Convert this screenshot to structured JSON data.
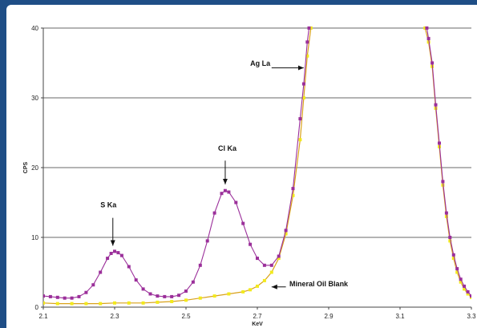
{
  "chart_data": {
    "type": "scatter",
    "title": "",
    "xlabel": "KeV",
    "ylabel": "CPS",
    "xlim": [
      2.1,
      3.3
    ],
    "ylim": [
      0,
      40
    ],
    "xticks": [
      "2.1",
      "2.3",
      "2.5",
      "2.7",
      "2.9",
      "3.1",
      "3.3"
    ],
    "yticks": [
      "0",
      "10",
      "20",
      "30",
      "40"
    ],
    "grid": "horizontal",
    "legend": "none",
    "colors": {
      "sample": "#9b2f9a",
      "blank": "#f2ea1c",
      "blank_line": "#d9a21a"
    },
    "series": [
      {
        "key": "sample",
        "name": "",
        "points": [
          [
            2.1,
            1.6
          ],
          [
            2.12,
            1.5
          ],
          [
            2.14,
            1.4
          ],
          [
            2.16,
            1.3
          ],
          [
            2.18,
            1.3
          ],
          [
            2.2,
            1.5
          ],
          [
            2.22,
            2.1
          ],
          [
            2.24,
            3.2
          ],
          [
            2.26,
            5.0
          ],
          [
            2.28,
            7.0
          ],
          [
            2.29,
            7.7
          ],
          [
            2.3,
            8.0
          ],
          [
            2.31,
            7.8
          ],
          [
            2.32,
            7.4
          ],
          [
            2.34,
            5.8
          ],
          [
            2.36,
            3.9
          ],
          [
            2.38,
            2.6
          ],
          [
            2.4,
            1.9
          ],
          [
            2.42,
            1.6
          ],
          [
            2.44,
            1.5
          ],
          [
            2.46,
            1.5
          ],
          [
            2.48,
            1.7
          ],
          [
            2.5,
            2.3
          ],
          [
            2.52,
            3.6
          ],
          [
            2.54,
            6.0
          ],
          [
            2.56,
            9.5
          ],
          [
            2.58,
            13.5
          ],
          [
            2.6,
            16.3
          ],
          [
            2.61,
            16.7
          ],
          [
            2.62,
            16.5
          ],
          [
            2.64,
            15.0
          ],
          [
            2.66,
            12.0
          ],
          [
            2.68,
            9.0
          ],
          [
            2.7,
            7.0
          ],
          [
            2.72,
            6.0
          ],
          [
            2.74,
            6.0
          ],
          [
            2.76,
            7.3
          ],
          [
            2.78,
            11.0
          ],
          [
            2.8,
            17.0
          ],
          [
            2.82,
            27.0
          ],
          [
            2.83,
            32.0
          ],
          [
            2.84,
            38.0
          ],
          [
            2.845,
            40.0
          ],
          [
            3.175,
            40.0
          ],
          [
            3.18,
            38.5
          ],
          [
            3.19,
            35.0
          ],
          [
            3.2,
            29.0
          ],
          [
            3.21,
            23.5
          ],
          [
            3.22,
            18.0
          ],
          [
            3.23,
            13.5
          ],
          [
            3.24,
            10.0
          ],
          [
            3.25,
            7.5
          ],
          [
            3.26,
            5.5
          ],
          [
            3.27,
            4.0
          ],
          [
            3.28,
            3.0
          ],
          [
            3.29,
            2.2
          ],
          [
            3.3,
            1.6
          ]
        ]
      },
      {
        "key": "blank",
        "name": "",
        "points": [
          [
            2.1,
            0.6
          ],
          [
            2.14,
            0.5
          ],
          [
            2.18,
            0.5
          ],
          [
            2.22,
            0.5
          ],
          [
            2.26,
            0.5
          ],
          [
            2.3,
            0.6
          ],
          [
            2.34,
            0.6
          ],
          [
            2.38,
            0.6
          ],
          [
            2.42,
            0.7
          ],
          [
            2.46,
            0.8
          ],
          [
            2.5,
            1.0
          ],
          [
            2.54,
            1.3
          ],
          [
            2.58,
            1.6
          ],
          [
            2.62,
            1.9
          ],
          [
            2.66,
            2.2
          ],
          [
            2.68,
            2.5
          ],
          [
            2.7,
            3.0
          ],
          [
            2.72,
            3.8
          ],
          [
            2.74,
            5.0
          ],
          [
            2.76,
            7.0
          ],
          [
            2.78,
            10.5
          ],
          [
            2.8,
            16.0
          ],
          [
            2.82,
            24.0
          ],
          [
            2.83,
            30.0
          ],
          [
            2.84,
            36.0
          ],
          [
            2.85,
            40.0
          ],
          [
            3.17,
            40.0
          ],
          [
            3.18,
            38.0
          ],
          [
            3.19,
            34.5
          ],
          [
            3.2,
            28.5
          ],
          [
            3.21,
            23.0
          ],
          [
            3.22,
            17.5
          ],
          [
            3.23,
            13.0
          ],
          [
            3.24,
            9.5
          ],
          [
            3.25,
            7.0
          ],
          [
            3.26,
            5.0
          ],
          [
            3.27,
            3.6
          ],
          [
            3.28,
            2.6
          ],
          [
            3.29,
            1.9
          ],
          [
            3.3,
            1.4
          ]
        ]
      }
    ],
    "annotations": [
      {
        "key": "ag",
        "text": "Ag La",
        "label_x": 2.68,
        "label_y": 34.6,
        "arrow_from": [
          2.74,
          34.3
        ],
        "arrow_to": [
          2.83,
          34.3
        ]
      },
      {
        "key": "cl",
        "text": "Cl Ka",
        "label_x": 2.59,
        "label_y": 22.4,
        "arrow_from": [
          2.61,
          21.0
        ],
        "arrow_to": [
          2.61,
          17.6
        ]
      },
      {
        "key": "s",
        "text": "S Ka",
        "label_x": 2.26,
        "label_y": 14.3,
        "arrow_from": [
          2.295,
          12.8
        ],
        "arrow_to": [
          2.295,
          8.8
        ]
      },
      {
        "key": "blank",
        "text": "Mineral Oil Blank",
        "label_x": 2.79,
        "label_y": 3.0,
        "arrow_from": [
          2.78,
          2.9
        ],
        "arrow_to": [
          2.74,
          2.9
        ]
      }
    ]
  }
}
